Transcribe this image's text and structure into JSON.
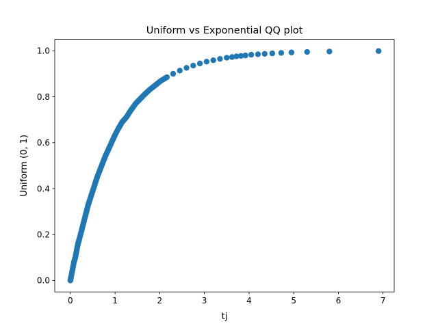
{
  "chart_data": {
    "type": "scatter",
    "title": "Uniform vs Exponential QQ plot",
    "xlabel": "tj",
    "ylabel": "Uniform (0, 1)",
    "xlim": [
      -0.35,
      7.25
    ],
    "ylim": [
      -0.05,
      1.05
    ],
    "x_ticks": [
      0,
      1,
      2,
      3,
      4,
      5,
      6,
      7
    ],
    "y_ticks": [
      "0.0",
      "0.2",
      "0.4",
      "0.6",
      "0.8",
      "1.0"
    ],
    "grid": false,
    "legend": "none",
    "marker_color": "#1f77b4",
    "series": [
      {
        "points": [
          [
            0.0,
            0.0
          ],
          [
            0.02,
            0.02
          ],
          [
            0.05,
            0.05
          ],
          [
            0.08,
            0.08
          ],
          [
            0.11,
            0.1
          ],
          [
            0.14,
            0.13
          ],
          [
            0.17,
            0.16
          ],
          [
            0.2,
            0.18
          ],
          [
            0.24,
            0.21
          ],
          [
            0.28,
            0.24
          ],
          [
            0.32,
            0.27
          ],
          [
            0.36,
            0.3
          ],
          [
            0.4,
            0.33
          ],
          [
            0.45,
            0.36
          ],
          [
            0.5,
            0.39
          ],
          [
            0.55,
            0.42
          ],
          [
            0.6,
            0.45
          ],
          [
            0.66,
            0.48
          ],
          [
            0.72,
            0.51
          ],
          [
            0.78,
            0.54
          ],
          [
            0.85,
            0.57
          ],
          [
            0.92,
            0.6
          ],
          [
            0.99,
            0.63
          ],
          [
            1.07,
            0.66
          ],
          [
            1.16,
            0.69
          ],
          [
            1.25,
            0.71
          ],
          [
            1.35,
            0.74
          ],
          [
            1.46,
            0.77
          ],
          [
            1.56,
            0.79
          ],
          [
            1.66,
            0.81
          ],
          [
            1.77,
            0.83
          ],
          [
            1.9,
            0.85
          ],
          [
            2.03,
            0.87
          ],
          [
            2.16,
            0.885
          ],
          [
            2.3,
            0.9
          ],
          [
            2.45,
            0.914
          ],
          [
            2.6,
            0.926
          ],
          [
            2.75,
            0.936
          ],
          [
            2.9,
            0.945
          ],
          [
            3.05,
            0.953
          ],
          [
            3.2,
            0.959
          ],
          [
            3.35,
            0.965
          ],
          [
            3.5,
            0.97
          ],
          [
            3.62,
            0.973
          ],
          [
            3.72,
            0.976
          ],
          [
            3.82,
            0.978
          ],
          [
            3.92,
            0.98
          ],
          [
            4.05,
            0.983
          ],
          [
            4.2,
            0.985
          ],
          [
            4.35,
            0.987
          ],
          [
            4.52,
            0.989
          ],
          [
            4.72,
            0.991
          ],
          [
            4.95,
            0.993
          ],
          [
            5.3,
            0.995
          ],
          [
            5.8,
            0.997
          ],
          [
            6.9,
            0.999
          ]
        ]
      }
    ]
  }
}
